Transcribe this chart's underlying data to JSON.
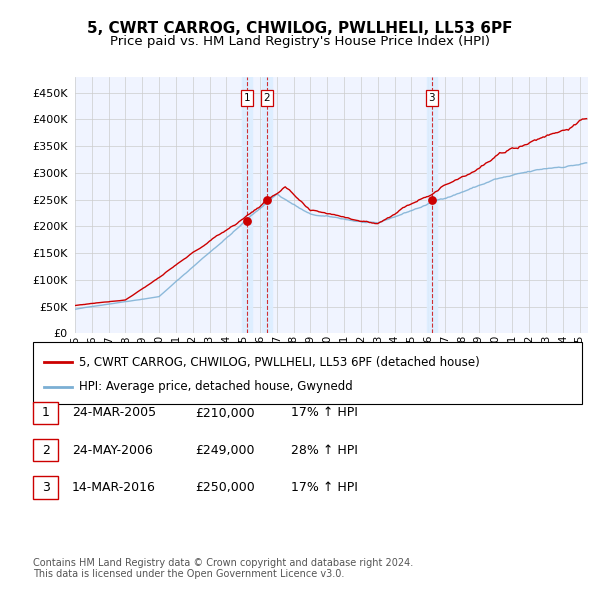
{
  "title": "5, CWRT CARROG, CHWILOG, PWLLHELI, LL53 6PF",
  "subtitle": "Price paid vs. HM Land Registry's House Price Index (HPI)",
  "ytick_values": [
    0,
    50000,
    100000,
    150000,
    200000,
    250000,
    300000,
    350000,
    400000,
    450000
  ],
  "ylim": [
    0,
    480000
  ],
  "xlim_start": 1995.0,
  "xlim_end": 2025.5,
  "red_line_color": "#cc0000",
  "blue_line_color": "#7bafd4",
  "vline_color": "#cc0000",
  "vband_color": "#ddeeff",
  "grid_color": "#cccccc",
  "background_color": "#ffffff",
  "legend_label_red": "5, CWRT CARROG, CHWILOG, PWLLHELI, LL53 6PF (detached house)",
  "legend_label_blue": "HPI: Average price, detached house, Gwynedd",
  "transactions": [
    {
      "id": 1,
      "date_str": "24-MAR-2005",
      "year": 2005.22,
      "price": 210000,
      "label": "17% ↑ HPI"
    },
    {
      "id": 2,
      "date_str": "24-MAY-2006",
      "year": 2006.4,
      "price": 249000,
      "label": "28% ↑ HPI"
    },
    {
      "id": 3,
      "date_str": "14-MAR-2016",
      "year": 2016.21,
      "price": 250000,
      "label": "17% ↑ HPI"
    }
  ],
  "footer_text": "Contains HM Land Registry data © Crown copyright and database right 2024.\nThis data is licensed under the Open Government Licence v3.0.",
  "title_fontsize": 11,
  "subtitle_fontsize": 9.5,
  "tick_fontsize": 8,
  "legend_fontsize": 8.5,
  "footer_fontsize": 7
}
